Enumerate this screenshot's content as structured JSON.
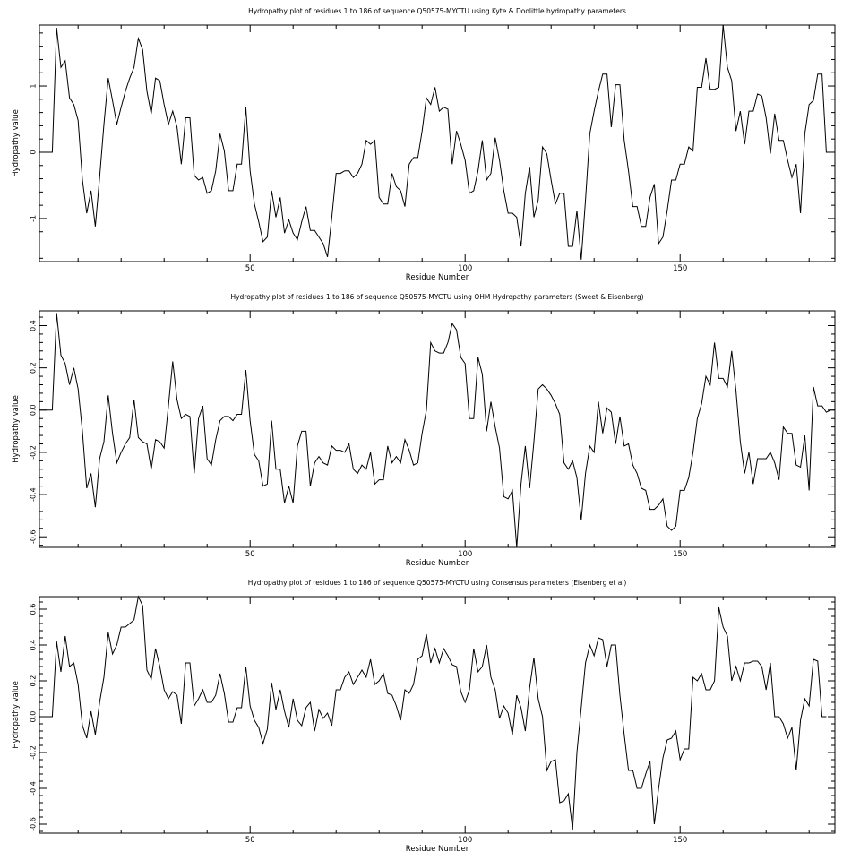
{
  "chart_data": [
    {
      "type": "line",
      "title": "Hydropathy plot of residues 1 to 186 of sequence Q50575-MYCTU using Kyte & Doolittle hydropathy parameters",
      "xlabel": "Residue Number",
      "ylabel": "Hydropathy value",
      "xlim": [
        1,
        186
      ],
      "ylim": [
        -1.65,
        1.92
      ],
      "xticks": [
        50,
        100,
        150
      ],
      "yticks": [
        -1,
        0,
        1
      ],
      "grid": false,
      "x_start": 1,
      "series": [
        {
          "values": [
            0,
            0,
            0,
            0,
            1.88,
            1.28,
            1.38,
            0.82,
            0.72,
            0.48,
            -0.42,
            -0.92,
            -0.58,
            -1.12,
            -0.38,
            0.42,
            1.12,
            0.78,
            0.42,
            0.68,
            0.92,
            1.12,
            1.28,
            1.72,
            1.55,
            0.92,
            0.58,
            1.12,
            1.08,
            0.72,
            0.42,
            0.62,
            0.38,
            -0.18,
            0.52,
            0.52,
            -0.35,
            -0.42,
            -0.38,
            -0.62,
            -0.58,
            -0.28,
            0.28,
            0.02,
            -0.58,
            -0.58,
            -0.18,
            -0.18,
            0.68,
            -0.28,
            -0.78,
            -1.05,
            -1.35,
            -1.28,
            -0.58,
            -0.98,
            -0.68,
            -1.22,
            -1.02,
            -1.22,
            -1.32,
            -1.05,
            -0.82,
            -1.18,
            -1.18,
            -1.28,
            -1.38,
            -1.58,
            -0.98,
            -0.32,
            -0.32,
            -0.28,
            -0.28,
            -0.38,
            -0.32,
            -0.18,
            0.18,
            0.12,
            0.18,
            -0.68,
            -0.78,
            -0.78,
            -0.32,
            -0.52,
            -0.58,
            -0.82,
            -0.18,
            -0.08,
            -0.08,
            0.32,
            0.82,
            0.72,
            0.98,
            0.62,
            0.68,
            0.65,
            -0.18,
            0.32,
            0.12,
            -0.12,
            -0.62,
            -0.58,
            -0.28,
            0.18,
            -0.42,
            -0.32,
            0.22,
            -0.12,
            -0.58,
            -0.92,
            -0.92,
            -0.98,
            -1.42,
            -0.62,
            -0.22,
            -0.98,
            -0.72,
            0.08,
            -0.02,
            -0.42,
            -0.78,
            -0.62,
            -0.62,
            -1.42,
            -1.42,
            -0.88,
            -1.62,
            -0.72,
            0.28,
            0.62,
            0.92,
            1.18,
            1.18,
            0.38,
            1.02,
            1.02,
            0.18,
            -0.28,
            -0.82,
            -0.82,
            -1.12,
            -1.12,
            -0.68,
            -0.48,
            -1.38,
            -1.28,
            -0.88,
            -0.42,
            -0.42,
            -0.18,
            -0.18,
            0.08,
            0.02,
            0.98,
            0.98,
            1.42,
            0.95,
            0.95,
            0.98,
            1.92,
            1.28,
            1.08,
            0.32,
            0.62,
            0.12,
            0.62,
            0.62,
            0.88,
            0.85,
            0.52,
            -0.02,
            0.58,
            0.18,
            0.18,
            -0.12,
            -0.38,
            -0.18,
            -0.92,
            0.28,
            0.72,
            0.78,
            1.18,
            1.18,
            0,
            0
          ]
        }
      ]
    },
    {
      "type": "line",
      "title": "Hydropathy plot of residues 1 to 186 of sequence Q50575-MYCTU using OHM  Hydropathy parameters (Sweet & Eisenberg)",
      "xlabel": "Residue Number",
      "ylabel": "Hydropathy value",
      "xlim": [
        1,
        186
      ],
      "ylim": [
        -0.65,
        0.47
      ],
      "xticks": [
        50,
        100,
        150
      ],
      "yticks": [
        -0.6,
        -0.4,
        -0.2,
        0.0,
        0.2,
        0.4
      ],
      "grid": false,
      "x_start": 1,
      "series": [
        {
          "values": [
            0,
            0,
            0,
            0,
            0.46,
            0.26,
            0.22,
            0.12,
            0.2,
            0.1,
            -0.1,
            -0.37,
            -0.3,
            -0.46,
            -0.23,
            -0.15,
            0.07,
            -0.11,
            -0.25,
            -0.2,
            -0.16,
            -0.13,
            0.05,
            -0.13,
            -0.15,
            -0.16,
            -0.28,
            -0.14,
            -0.15,
            -0.18,
            0.02,
            0.23,
            0.05,
            -0.04,
            -0.02,
            -0.03,
            -0.3,
            -0.04,
            0.02,
            -0.23,
            -0.26,
            -0.14,
            -0.05,
            -0.03,
            -0.03,
            -0.05,
            -0.02,
            -0.02,
            0.19,
            -0.05,
            -0.21,
            -0.24,
            -0.36,
            -0.35,
            -0.05,
            -0.28,
            -0.28,
            -0.44,
            -0.36,
            -0.44,
            -0.17,
            -0.1,
            -0.1,
            -0.36,
            -0.25,
            -0.22,
            -0.25,
            -0.26,
            -0.17,
            -0.19,
            -0.19,
            -0.2,
            -0.16,
            -0.28,
            -0.3,
            -0.26,
            -0.28,
            -0.2,
            -0.35,
            -0.33,
            -0.33,
            -0.17,
            -0.25,
            -0.22,
            -0.25,
            -0.14,
            -0.19,
            -0.26,
            -0.25,
            -0.11,
            0,
            0.32,
            0.28,
            0.27,
            0.27,
            0.32,
            0.41,
            0.38,
            0.25,
            0.22,
            -0.04,
            -0.04,
            0.25,
            0.17,
            -0.1,
            0.04,
            -0.08,
            -0.18,
            -0.41,
            -0.42,
            -0.38,
            -0.65,
            -0.35,
            -0.17,
            -0.37,
            -0.15,
            0.1,
            0.12,
            0.1,
            0.07,
            0.03,
            -0.02,
            -0.25,
            -0.28,
            -0.24,
            -0.32,
            -0.52,
            -0.3,
            -0.17,
            -0.2,
            0.04,
            -0.11,
            0.01,
            -0.01,
            -0.16,
            -0.03,
            -0.17,
            -0.16,
            -0.26,
            -0.3,
            -0.37,
            -0.38,
            -0.47,
            -0.47,
            -0.45,
            -0.42,
            -0.55,
            -0.57,
            -0.55,
            -0.38,
            -0.38,
            -0.32,
            -0.2,
            -0.04,
            0.03,
            0.16,
            0.12,
            0.32,
            0.15,
            0.15,
            0.11,
            0.28,
            0.09,
            -0.15,
            -0.3,
            -0.2,
            -0.35,
            -0.23,
            -0.23,
            -0.23,
            -0.2,
            -0.25,
            -0.33,
            -0.08,
            -0.11,
            -0.11,
            -0.26,
            -0.27,
            -0.12,
            -0.38,
            0.11,
            0.02,
            0.02,
            -0.01,
            0,
            0
          ]
        }
      ]
    },
    {
      "type": "line",
      "title": "Hydropathy plot of residues 1 to 186 of sequence Q50575-MYCTU using Consensus parameters (Eisenberg et al)",
      "xlabel": "Residue Number",
      "ylabel": "Hydropathy value",
      "xlim": [
        1,
        186
      ],
      "ylim": [
        -0.65,
        0.67
      ],
      "xticks": [
        50,
        100,
        150
      ],
      "yticks": [
        -0.6,
        -0.4,
        -0.2,
        0.0,
        0.2,
        0.4,
        0.6
      ],
      "grid": false,
      "x_start": 1,
      "series": [
        {
          "values": [
            0,
            0,
            0,
            0,
            0.42,
            0.25,
            0.45,
            0.28,
            0.3,
            0.18,
            -0.05,
            -0.12,
            0.03,
            -0.1,
            0.08,
            0.22,
            0.47,
            0.35,
            0.4,
            0.5,
            0.5,
            0.52,
            0.54,
            0.67,
            0.62,
            0.26,
            0.21,
            0.38,
            0.28,
            0.15,
            0.1,
            0.14,
            0.12,
            -0.04,
            0.3,
            0.3,
            0.06,
            0.1,
            0.15,
            0.08,
            0.08,
            0.12,
            0.24,
            0.13,
            -0.03,
            -0.03,
            0.05,
            0.05,
            0.28,
            0.06,
            -0.02,
            -0.06,
            -0.15,
            -0.07,
            0.19,
            0.04,
            0.15,
            0.03,
            -0.06,
            0.1,
            -0.02,
            -0.05,
            0.05,
            0.08,
            -0.08,
            0.04,
            -0.01,
            0.02,
            -0.05,
            0.15,
            0.15,
            0.22,
            0.25,
            0.18,
            0.22,
            0.26,
            0.22,
            0.32,
            0.18,
            0.2,
            0.24,
            0.13,
            0.12,
            0.06,
            -0.02,
            0.15,
            0.13,
            0.18,
            0.32,
            0.34,
            0.46,
            0.3,
            0.38,
            0.3,
            0.38,
            0.34,
            0.29,
            0.28,
            0.14,
            0.08,
            0.15,
            0.38,
            0.25,
            0.28,
            0.4,
            0.22,
            0.15,
            -0.01,
            0.06,
            0.02,
            -0.1,
            0.12,
            0.05,
            -0.08,
            0.16,
            0.33,
            0.1,
            0,
            -0.3,
            -0.25,
            -0.24,
            -0.48,
            -0.47,
            -0.43,
            -0.63,
            -0.2,
            0.05,
            0.3,
            0.4,
            0.34,
            0.44,
            0.43,
            0.28,
            0.4,
            0.4,
            0.12,
            -0.1,
            -0.3,
            -0.3,
            -0.4,
            -0.4,
            -0.32,
            -0.25,
            -0.6,
            -0.4,
            -0.23,
            -0.13,
            -0.12,
            -0.08,
            -0.24,
            -0.18,
            -0.18,
            0.22,
            0.2,
            0.24,
            0.15,
            0.15,
            0.2,
            0.61,
            0.5,
            0.45,
            0.2,
            0.28,
            0.2,
            0.3,
            0.3,
            0.31,
            0.31,
            0.28,
            0.15,
            0.3,
            0,
            0,
            -0.04,
            -0.12,
            -0.06,
            -0.3,
            -0.02,
            0.1,
            0.06,
            0.32,
            0.31,
            0,
            0
          ]
        }
      ]
    }
  ]
}
